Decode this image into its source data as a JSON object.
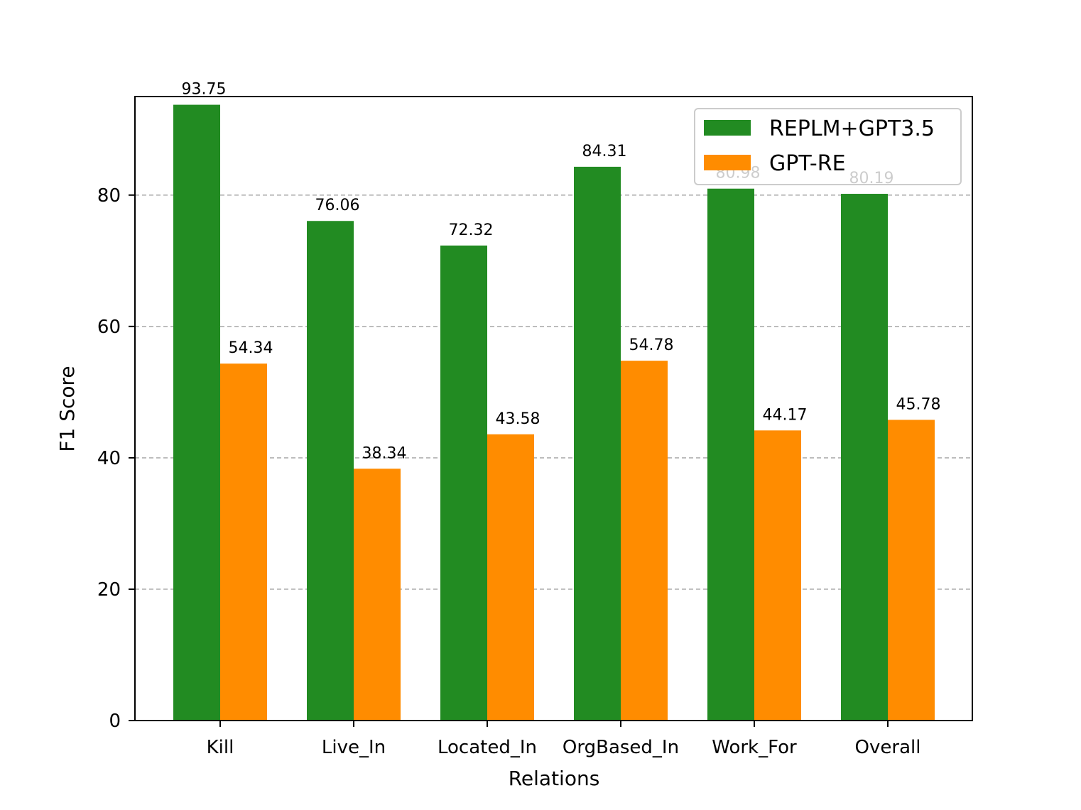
{
  "chart_data": {
    "type": "bar",
    "xlabel": "Relations",
    "ylabel": "F1 Score",
    "ylim": [
      0,
      95
    ],
    "yticks": [
      0,
      20,
      40,
      60,
      80
    ],
    "grid": "y-dashed",
    "legend_position": "top-right",
    "categories": [
      "Kill",
      "Live_In",
      "Located_In",
      "OrgBased_In",
      "Work_For",
      "Overall"
    ],
    "series": [
      {
        "name": "REPLM+GPT3.5",
        "color": "#228B22",
        "values": [
          93.75,
          76.06,
          72.32,
          84.31,
          80.98,
          80.19
        ],
        "labels": [
          "93.75",
          "76.06",
          "72.32",
          "84.31",
          "80.98",
          "80.19"
        ]
      },
      {
        "name": "GPT-RE",
        "color": "#FF8C00",
        "values": [
          54.34,
          38.34,
          43.58,
          54.78,
          44.17,
          45.78
        ],
        "labels": [
          "54.34",
          "38.34",
          "43.58",
          "54.78",
          "44.17",
          "45.78"
        ]
      }
    ]
  }
}
